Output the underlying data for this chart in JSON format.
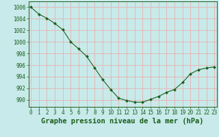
{
  "x": [
    0,
    1,
    2,
    3,
    4,
    5,
    6,
    7,
    8,
    9,
    10,
    11,
    12,
    13,
    14,
    15,
    16,
    17,
    18,
    19,
    20,
    21,
    22,
    23
  ],
  "y": [
    1006.0,
    1004.8,
    1004.1,
    1003.2,
    1002.1,
    1000.0,
    998.8,
    997.5,
    995.5,
    993.5,
    991.8,
    990.3,
    989.9,
    989.6,
    989.6,
    990.1,
    990.6,
    991.3,
    991.8,
    993.0,
    994.5,
    995.2,
    995.5,
    995.7
  ],
  "line_color": "#1a5e1a",
  "marker": "D",
  "marker_size": 2.0,
  "bg_color": "#c8eaea",
  "grid_color": "#e8b0b0",
  "text_color": "#1a5e1a",
  "xlabel": "Graphe pression niveau de la mer (hPa)",
  "ylabel_ticks": [
    990,
    992,
    994,
    996,
    998,
    1000,
    1002,
    1004,
    1006
  ],
  "ylim": [
    988.8,
    1007.0
  ],
  "xlim": [
    -0.3,
    23.3
  ],
  "tick_fontsize": 5.5,
  "xlabel_fontsize": 7.5
}
